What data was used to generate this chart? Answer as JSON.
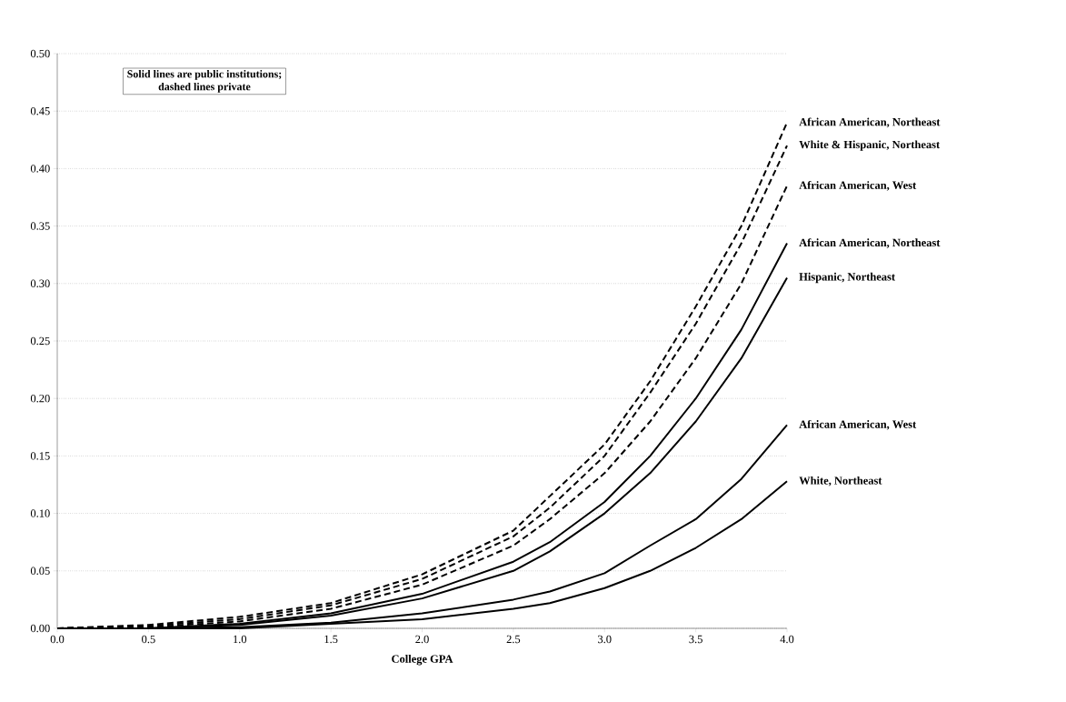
{
  "chart_data": {
    "type": "line",
    "xlabel": "College GPA",
    "x": [
      0,
      0.5,
      1,
      1.5,
      2,
      2.5,
      2.7,
      3,
      3.25,
      3.5,
      3.75,
      4
    ],
    "series": [
      {
        "name": "African American, Northeast",
        "color": "#000000",
        "line_style": "dashed",
        "values": [
          0,
          0.003,
          0.01,
          0.022,
          0.047,
          0.085,
          0.115,
          0.16,
          0.215,
          0.28,
          0.35,
          0.44
        ]
      },
      {
        "name": "White & Hispanic, Northeast",
        "color": "#000000",
        "line_style": "dashed",
        "values": [
          0,
          0.002,
          0.008,
          0.02,
          0.043,
          0.08,
          0.105,
          0.15,
          0.205,
          0.265,
          0.335,
          0.42
        ]
      },
      {
        "name": "African American, West",
        "color": "#000000",
        "line_style": "dashed",
        "values": [
          0,
          0.001,
          0.006,
          0.017,
          0.038,
          0.072,
          0.095,
          0.135,
          0.18,
          0.235,
          0.3,
          0.385
        ]
      },
      {
        "name": "African American, Northeast",
        "color": "#000000",
        "line_style": "solid",
        "values": [
          0,
          0,
          0.004,
          0.013,
          0.03,
          0.058,
          0.075,
          0.11,
          0.15,
          0.2,
          0.26,
          0.335
        ]
      },
      {
        "name": "Hispanic, Northeast",
        "color": "#000000",
        "line_style": "solid",
        "values": [
          0,
          0,
          0.003,
          0.011,
          0.026,
          0.05,
          0.067,
          0.1,
          0.135,
          0.18,
          0.235,
          0.305
        ]
      },
      {
        "name": "African American, West",
        "color": "#000000",
        "line_style": "solid",
        "values": [
          0,
          0,
          0.001,
          0.005,
          0.013,
          0.025,
          0.032,
          0.048,
          0.072,
          0.095,
          0.13,
          0.177
        ]
      },
      {
        "name": "White, Northeast",
        "color": "#000000",
        "line_style": "solid",
        "values": [
          0,
          0,
          0,
          0.004,
          0.008,
          0.017,
          0.022,
          0.035,
          0.05,
          0.07,
          0.095,
          0.128
        ]
      }
    ],
    "xlim": [
      0,
      4
    ],
    "xticks": [
      {
        "value": 0,
        "label": "0.0"
      },
      {
        "value": 0.5,
        "label": "0.5"
      },
      {
        "value": 1,
        "label": "1.0"
      },
      {
        "value": 1.5,
        "label": "1.5"
      },
      {
        "value": 2,
        "label": "2.0"
      },
      {
        "value": 2.5,
        "label": "2.5"
      },
      {
        "value": 3,
        "label": "3.0"
      },
      {
        "value": 3.5,
        "label": "3.5"
      },
      {
        "value": 4,
        "label": "4.0"
      }
    ],
    "ylim": [
      0,
      0.5
    ],
    "yticks": [
      {
        "value": 0,
        "label": "0.00"
      },
      {
        "value": 0.05,
        "label": "0.05"
      },
      {
        "value": 0.1,
        "label": "0.10"
      },
      {
        "value": 0.15,
        "label": "0.15"
      },
      {
        "value": 0.2,
        "label": "0.20"
      },
      {
        "value": 0.25,
        "label": "0.25"
      },
      {
        "value": 0.3,
        "label": "0.30"
      },
      {
        "value": 0.35,
        "label": "0.35"
      },
      {
        "value": 0.4,
        "label": "0.40"
      },
      {
        "value": 0.45,
        "label": "0.45"
      },
      {
        "value": 0.5,
        "label": "0.50"
      }
    ],
    "grid": "y",
    "annotations": [
      "Solid lines are public institutions; dashed lines private"
    ]
  }
}
